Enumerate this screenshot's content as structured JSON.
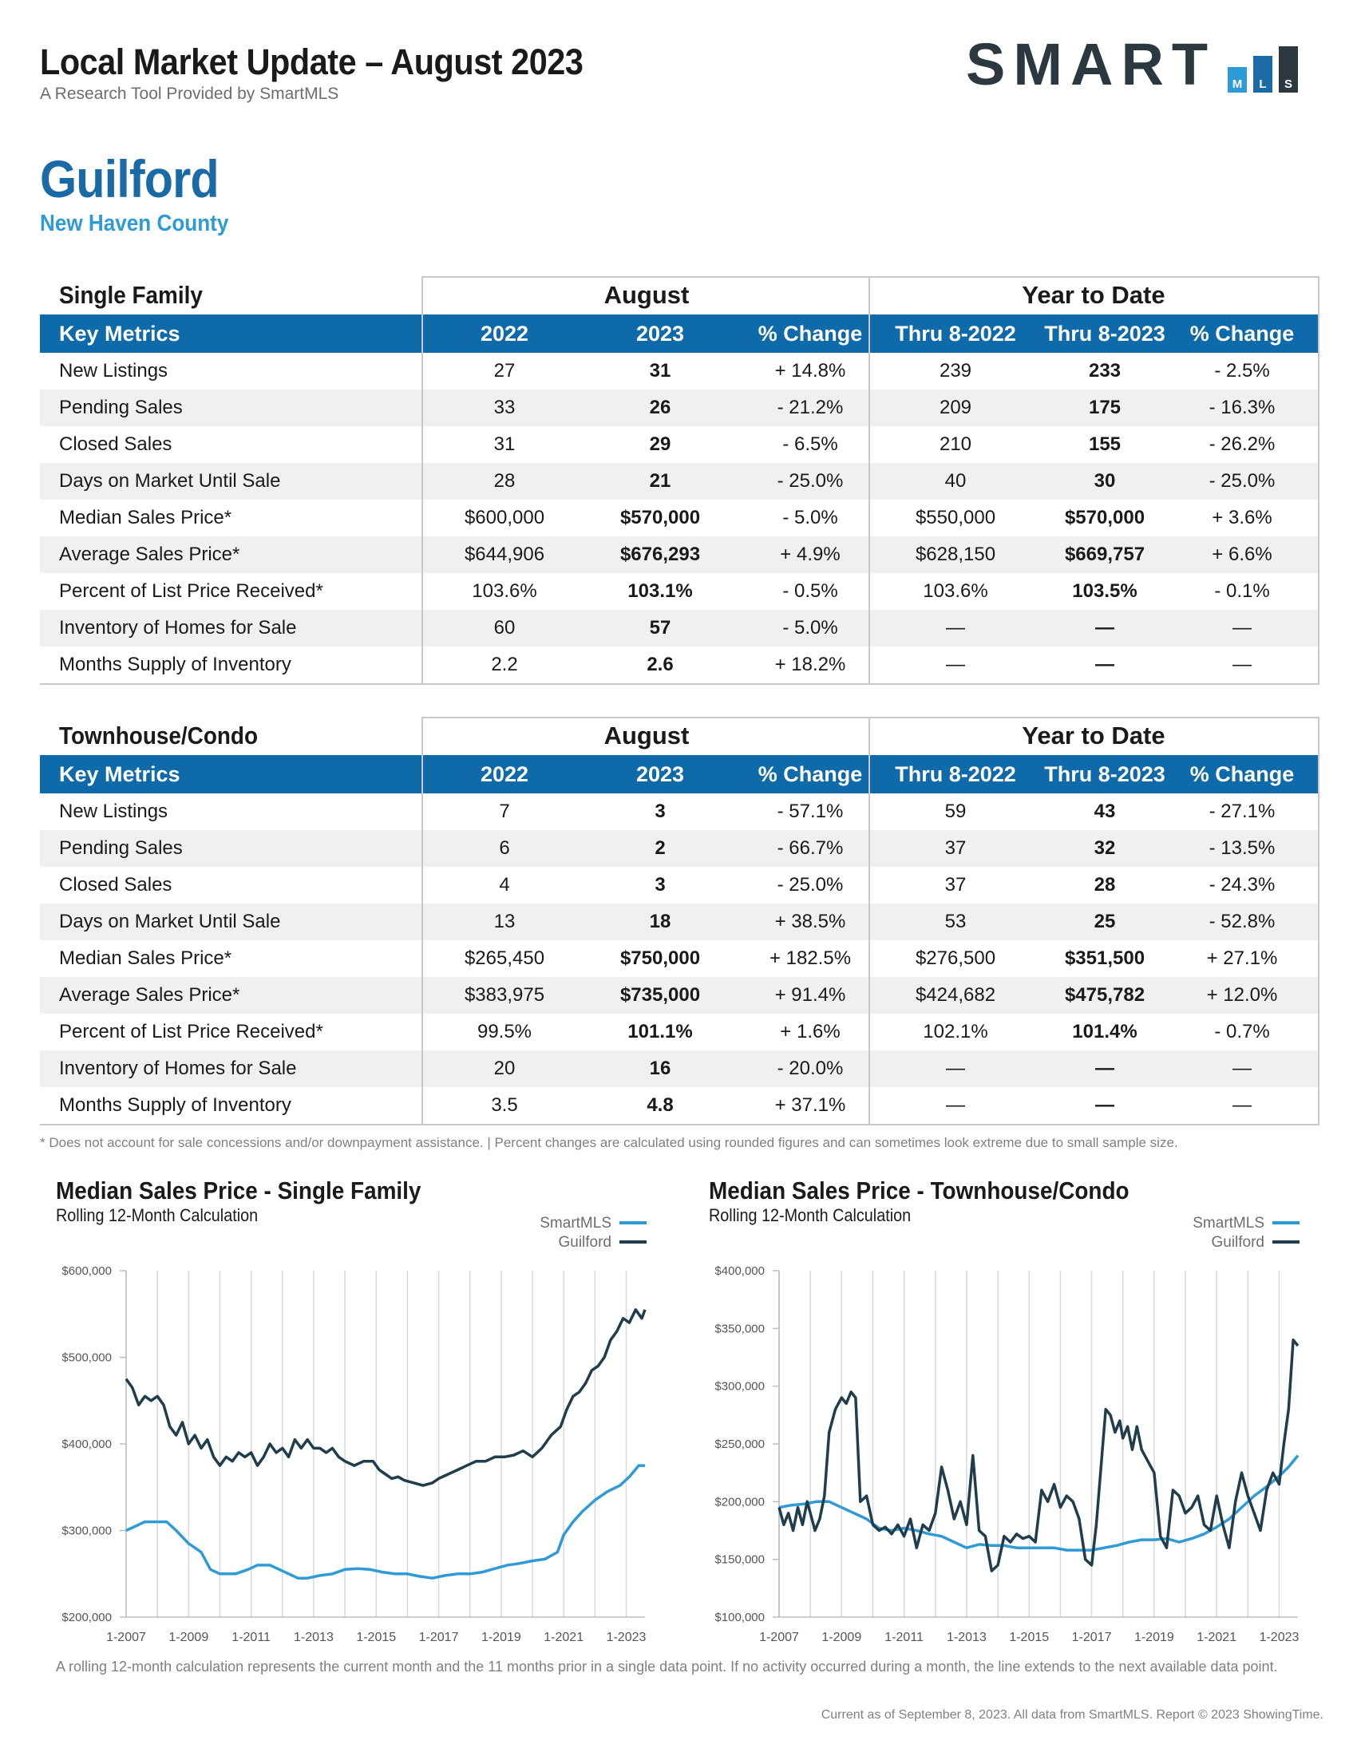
{
  "header": {
    "title": "Local Market Update – August 2023",
    "subtitle": "A Research Tool Provided by SmartMLS",
    "logo_text": "SMART",
    "logo_boxes": [
      "M",
      "L",
      "S"
    ]
  },
  "location": {
    "city": "Guilford",
    "county": "New Haven County"
  },
  "columns": {
    "metric": "Key Metrics",
    "month_group": "August",
    "ytd_group": "Year to Date",
    "labels": [
      "2022",
      "2023",
      "% Change",
      "Thru 8-2022",
      "Thru 8-2023",
      "% Change"
    ]
  },
  "tables": [
    {
      "title": "Single Family",
      "rows": [
        {
          "metric": "New Listings",
          "m2022": "27",
          "m2023": "31",
          "mchg": "+ 14.8%",
          "y2022": "239",
          "y2023": "233",
          "ychg": "- 2.5%"
        },
        {
          "metric": "Pending Sales",
          "m2022": "33",
          "m2023": "26",
          "mchg": "- 21.2%",
          "y2022": "209",
          "y2023": "175",
          "ychg": "- 16.3%"
        },
        {
          "metric": "Closed Sales",
          "m2022": "31",
          "m2023": "29",
          "mchg": "- 6.5%",
          "y2022": "210",
          "y2023": "155",
          "ychg": "- 26.2%"
        },
        {
          "metric": "Days on Market Until Sale",
          "m2022": "28",
          "m2023": "21",
          "mchg": "- 25.0%",
          "y2022": "40",
          "y2023": "30",
          "ychg": "- 25.0%"
        },
        {
          "metric": "Median Sales Price*",
          "m2022": "$600,000",
          "m2023": "$570,000",
          "mchg": "- 5.0%",
          "y2022": "$550,000",
          "y2023": "$570,000",
          "ychg": "+ 3.6%"
        },
        {
          "metric": "Average Sales Price*",
          "m2022": "$644,906",
          "m2023": "$676,293",
          "mchg": "+ 4.9%",
          "y2022": "$628,150",
          "y2023": "$669,757",
          "ychg": "+ 6.6%"
        },
        {
          "metric": "Percent of List Price Received*",
          "m2022": "103.6%",
          "m2023": "103.1%",
          "mchg": "- 0.5%",
          "y2022": "103.6%",
          "y2023": "103.5%",
          "ychg": "- 0.1%"
        },
        {
          "metric": "Inventory of Homes for Sale",
          "m2022": "60",
          "m2023": "57",
          "mchg": "- 5.0%",
          "y2022": "—",
          "y2023": "—",
          "ychg": "—"
        },
        {
          "metric": "Months Supply of Inventory",
          "m2022": "2.2",
          "m2023": "2.6",
          "mchg": "+ 18.2%",
          "y2022": "—",
          "y2023": "—",
          "ychg": "—"
        }
      ]
    },
    {
      "title": "Townhouse/Condo",
      "rows": [
        {
          "metric": "New Listings",
          "m2022": "7",
          "m2023": "3",
          "mchg": "- 57.1%",
          "y2022": "59",
          "y2023": "43",
          "ychg": "- 27.1%"
        },
        {
          "metric": "Pending Sales",
          "m2022": "6",
          "m2023": "2",
          "mchg": "- 66.7%",
          "y2022": "37",
          "y2023": "32",
          "ychg": "- 13.5%"
        },
        {
          "metric": "Closed Sales",
          "m2022": "4",
          "m2023": "3",
          "mchg": "- 25.0%",
          "y2022": "37",
          "y2023": "28",
          "ychg": "- 24.3%"
        },
        {
          "metric": "Days on Market Until Sale",
          "m2022": "13",
          "m2023": "18",
          "mchg": "+ 38.5%",
          "y2022": "53",
          "y2023": "25",
          "ychg": "- 52.8%"
        },
        {
          "metric": "Median Sales Price*",
          "m2022": "$265,450",
          "m2023": "$750,000",
          "mchg": "+ 182.5%",
          "y2022": "$276,500",
          "y2023": "$351,500",
          "ychg": "+ 27.1%"
        },
        {
          "metric": "Average Sales Price*",
          "m2022": "$383,975",
          "m2023": "$735,000",
          "mchg": "+ 91.4%",
          "y2022": "$424,682",
          "y2023": "$475,782",
          "ychg": "+ 12.0%"
        },
        {
          "metric": "Percent of List Price Received*",
          "m2022": "99.5%",
          "m2023": "101.1%",
          "mchg": "+ 1.6%",
          "y2022": "102.1%",
          "y2023": "101.4%",
          "ychg": "- 0.7%"
        },
        {
          "metric": "Inventory of Homes for Sale",
          "m2022": "20",
          "m2023": "16",
          "mchg": "- 20.0%",
          "y2022": "—",
          "y2023": "—",
          "ychg": "—"
        },
        {
          "metric": "Months Supply of Inventory",
          "m2022": "3.5",
          "m2023": "4.8",
          "mchg": "+ 37.1%",
          "y2022": "—",
          "y2023": "—",
          "ychg": "—"
        }
      ]
    }
  ],
  "footnote": "* Does not account for sale concessions and/or downpayment assistance. | Percent changes are calculated using rounded figures and can sometimes look extreme due to small sample size.",
  "charts_subtitle": "Rolling 12-Month Calculation",
  "colors": {
    "smartmls": "#2f9bd6",
    "guilford": "#1f3d4d",
    "brand_blue": "#0f6aa9"
  },
  "chart_data": [
    {
      "type": "line",
      "title": "Median Sales Price - Single Family",
      "subtitle": "Rolling 12-Month Calculation",
      "ylim": [
        200000,
        600000
      ],
      "yticks": [
        200000,
        300000,
        400000,
        500000,
        600000
      ],
      "ytick_labels": [
        "$200,000",
        "$300,000",
        "$400,000",
        "$500,000",
        "$600,000"
      ],
      "xlim": [
        2007.0,
        2023.6
      ],
      "xticks": [
        2007,
        2009,
        2011,
        2013,
        2015,
        2017,
        2019,
        2021,
        2023
      ],
      "xtick_labels": [
        "1-2007",
        "1-2009",
        "1-2011",
        "1-2013",
        "1-2015",
        "1-2017",
        "1-2019",
        "1-2021",
        "1-2023"
      ],
      "series": [
        {
          "name": "SmartMLS",
          "color": "#2f9bd6",
          "x": [
            2007.0,
            2007.3,
            2007.6,
            2008.0,
            2008.3,
            2008.6,
            2009.0,
            2009.4,
            2009.7,
            2010.0,
            2010.5,
            2010.9,
            2011.2,
            2011.6,
            2011.9,
            2012.2,
            2012.5,
            2012.8,
            2013.2,
            2013.6,
            2014.0,
            2014.4,
            2014.8,
            2015.2,
            2015.6,
            2016.0,
            2016.4,
            2016.8,
            2017.2,
            2017.6,
            2018.0,
            2018.4,
            2018.8,
            2019.2,
            2019.6,
            2020.0,
            2020.4,
            2020.8,
            2021.0,
            2021.3,
            2021.6,
            2022.0,
            2022.4,
            2022.8,
            2023.1,
            2023.4,
            2023.6
          ],
          "y": [
            300000,
            305000,
            310000,
            310000,
            310000,
            300000,
            285000,
            275000,
            255000,
            250000,
            250000,
            255000,
            260000,
            260000,
            255000,
            250000,
            245000,
            245000,
            248000,
            250000,
            255000,
            256000,
            255000,
            252000,
            250000,
            250000,
            247000,
            245000,
            248000,
            250000,
            250000,
            252000,
            256000,
            260000,
            262000,
            265000,
            267000,
            275000,
            295000,
            310000,
            322000,
            335000,
            345000,
            352000,
            362000,
            375000,
            375000
          ]
        },
        {
          "name": "Guilford",
          "color": "#1f3d4d",
          "x": [
            2007.0,
            2007.2,
            2007.4,
            2007.6,
            2007.8,
            2008.0,
            2008.2,
            2008.4,
            2008.6,
            2008.8,
            2009.0,
            2009.2,
            2009.4,
            2009.6,
            2009.8,
            2010.0,
            2010.2,
            2010.4,
            2010.6,
            2010.8,
            2011.0,
            2011.2,
            2011.4,
            2011.6,
            2011.8,
            2012.0,
            2012.2,
            2012.4,
            2012.6,
            2012.8,
            2013.0,
            2013.2,
            2013.4,
            2013.6,
            2013.8,
            2014.0,
            2014.3,
            2014.6,
            2014.9,
            2015.1,
            2015.3,
            2015.5,
            2015.7,
            2015.9,
            2016.2,
            2016.5,
            2016.8,
            2017.0,
            2017.3,
            2017.6,
            2017.9,
            2018.2,
            2018.5,
            2018.8,
            2019.1,
            2019.4,
            2019.7,
            2020.0,
            2020.3,
            2020.6,
            2020.9,
            2021.1,
            2021.3,
            2021.5,
            2021.7,
            2021.9,
            2022.1,
            2022.3,
            2022.5,
            2022.7,
            2022.9,
            2023.1,
            2023.3,
            2023.5,
            2023.6
          ],
          "y": [
            475000,
            465000,
            445000,
            455000,
            450000,
            455000,
            445000,
            420000,
            410000,
            425000,
            400000,
            410000,
            395000,
            405000,
            385000,
            375000,
            385000,
            380000,
            390000,
            385000,
            390000,
            375000,
            385000,
            400000,
            390000,
            395000,
            385000,
            405000,
            395000,
            405000,
            395000,
            395000,
            390000,
            395000,
            385000,
            380000,
            375000,
            380000,
            380000,
            370000,
            365000,
            360000,
            362000,
            358000,
            355000,
            352000,
            355000,
            360000,
            365000,
            370000,
            375000,
            380000,
            380000,
            385000,
            385000,
            387000,
            392000,
            385000,
            395000,
            410000,
            420000,
            440000,
            455000,
            460000,
            470000,
            485000,
            490000,
            500000,
            520000,
            530000,
            545000,
            540000,
            555000,
            545000,
            555000
          ]
        }
      ]
    },
    {
      "type": "line",
      "title": "Median Sales Price - Townhouse/Condo",
      "subtitle": "Rolling 12-Month Calculation",
      "ylim": [
        100000,
        400000
      ],
      "yticks": [
        100000,
        150000,
        200000,
        250000,
        300000,
        350000,
        400000
      ],
      "ytick_labels": [
        "$100,000",
        "$150,000",
        "$200,000",
        "$250,000",
        "$300,000",
        "$350,000",
        "$400,000"
      ],
      "xlim": [
        2007.0,
        2023.6
      ],
      "xticks": [
        2007,
        2009,
        2011,
        2013,
        2015,
        2017,
        2019,
        2021,
        2023
      ],
      "xtick_labels": [
        "1-2007",
        "1-2009",
        "1-2011",
        "1-2013",
        "1-2015",
        "1-2017",
        "1-2019",
        "1-2021",
        "1-2023"
      ],
      "series": [
        {
          "name": "SmartMLS",
          "color": "#2f9bd6",
          "x": [
            2007.0,
            2007.4,
            2007.8,
            2008.2,
            2008.6,
            2009.0,
            2009.4,
            2009.8,
            2010.2,
            2010.6,
            2011.0,
            2011.4,
            2011.8,
            2012.2,
            2012.6,
            2013.0,
            2013.4,
            2013.8,
            2014.2,
            2014.6,
            2015.0,
            2015.4,
            2015.8,
            2016.2,
            2016.6,
            2017.0,
            2017.4,
            2017.8,
            2018.2,
            2018.6,
            2019.0,
            2019.4,
            2019.8,
            2020.2,
            2020.6,
            2021.0,
            2021.4,
            2021.8,
            2022.2,
            2022.6,
            2023.0,
            2023.3,
            2023.6
          ],
          "y": [
            195000,
            197000,
            198000,
            200000,
            200000,
            195000,
            190000,
            185000,
            177000,
            175000,
            177000,
            175000,
            172000,
            170000,
            165000,
            160000,
            163000,
            162000,
            162000,
            160000,
            160000,
            160000,
            160000,
            158000,
            158000,
            158000,
            160000,
            162000,
            165000,
            167000,
            167000,
            168000,
            165000,
            168000,
            172000,
            178000,
            185000,
            195000,
            205000,
            213000,
            222000,
            230000,
            240000
          ]
        },
        {
          "name": "Guilford",
          "color": "#1f3d4d",
          "x": [
            2007.0,
            2007.15,
            2007.3,
            2007.45,
            2007.6,
            2007.75,
            2007.9,
            2008.0,
            2008.15,
            2008.3,
            2008.45,
            2008.6,
            2008.8,
            2009.0,
            2009.15,
            2009.3,
            2009.45,
            2009.6,
            2009.8,
            2010.0,
            2010.2,
            2010.4,
            2010.6,
            2010.8,
            2011.0,
            2011.2,
            2011.4,
            2011.6,
            2011.8,
            2012.0,
            2012.2,
            2012.4,
            2012.6,
            2012.8,
            2013.0,
            2013.2,
            2013.4,
            2013.6,
            2013.8,
            2014.0,
            2014.2,
            2014.4,
            2014.6,
            2014.8,
            2015.0,
            2015.2,
            2015.4,
            2015.6,
            2015.8,
            2016.0,
            2016.2,
            2016.4,
            2016.6,
            2016.8,
            2017.0,
            2017.15,
            2017.3,
            2017.45,
            2017.6,
            2017.75,
            2017.9,
            2018.0,
            2018.15,
            2018.3,
            2018.45,
            2018.6,
            2018.8,
            2019.0,
            2019.2,
            2019.4,
            2019.6,
            2019.8,
            2020.0,
            2020.2,
            2020.4,
            2020.6,
            2020.8,
            2021.0,
            2021.2,
            2021.4,
            2021.6,
            2021.8,
            2022.0,
            2022.2,
            2022.4,
            2022.6,
            2022.8,
            2023.0,
            2023.15,
            2023.3,
            2023.45,
            2023.6
          ],
          "y": [
            195000,
            180000,
            190000,
            175000,
            195000,
            180000,
            200000,
            190000,
            175000,
            185000,
            205000,
            260000,
            280000,
            290000,
            285000,
            295000,
            290000,
            200000,
            205000,
            180000,
            175000,
            178000,
            172000,
            180000,
            170000,
            185000,
            160000,
            180000,
            175000,
            190000,
            230000,
            210000,
            185000,
            200000,
            180000,
            240000,
            175000,
            170000,
            140000,
            145000,
            170000,
            165000,
            172000,
            168000,
            170000,
            165000,
            210000,
            200000,
            215000,
            195000,
            205000,
            200000,
            185000,
            150000,
            145000,
            180000,
            230000,
            280000,
            275000,
            260000,
            270000,
            255000,
            265000,
            245000,
            265000,
            245000,
            235000,
            225000,
            170000,
            160000,
            210000,
            205000,
            190000,
            195000,
            205000,
            180000,
            175000,
            205000,
            180000,
            160000,
            200000,
            225000,
            205000,
            190000,
            175000,
            210000,
            225000,
            215000,
            250000,
            280000,
            340000,
            335000
          ]
        }
      ]
    }
  ],
  "bottom_note": "A rolling 12-month calculation represents the current month and the 11 months prior in a single data point. If no activity occurred during a month, the line extends to the next available data point.",
  "copyright": "Current as of September 8, 2023. All data from SmartMLS. Report © 2023 ShowingTime."
}
